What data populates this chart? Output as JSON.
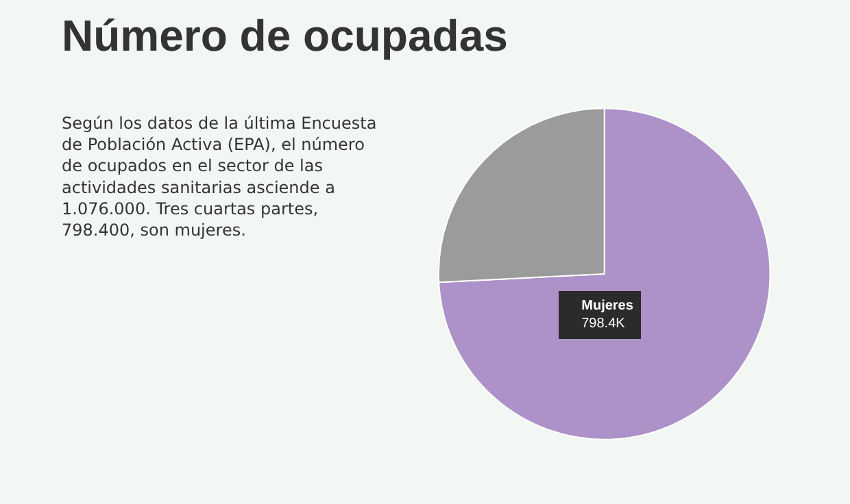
{
  "chart_data": {
    "type": "pie",
    "title": "Número de ocupadas",
    "subtitle": "Según los datos de la última Encuesta\nde Población Activa (EPA), el número\nde ocupados en el sector de las\nactividades sanitarias asciende a\n1.076.000. Tres cuartas partes,\n798.400, son mujeres.",
    "categories": [
      "Mujeres",
      null
    ],
    "values": [
      798.4,
      277.6
    ],
    "value_labels": [
      "798.4K",
      null
    ],
    "colors": [
      "#ac92c9",
      "#9b9b9b"
    ],
    "legend": false
  }
}
